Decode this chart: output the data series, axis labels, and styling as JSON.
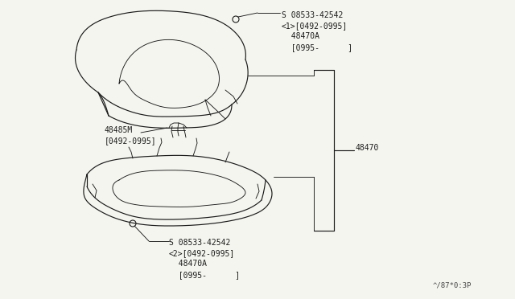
{
  "bg_color": "#f5f5f0",
  "fig_width": 6.4,
  "fig_height": 3.72,
  "dpi": 100,
  "label_screw_top": "S 08533-42542\n<1>[0492-0995]\n  48470A\n  [0995-      ]",
  "label_bracket": "48485M\n[0492-0995]",
  "label_48470": "48470",
  "label_screw_bot": "S 08533-42542\n<2>[0492-0995]\n  48470A\n  [0995-      ]",
  "watermark": "^/87*0:3P"
}
